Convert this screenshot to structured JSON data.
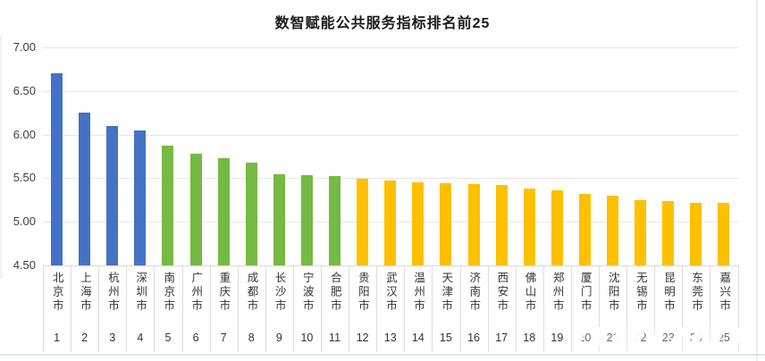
{
  "title": "数智赋能公共服务指标排名前25",
  "chart_data": {
    "type": "bar",
    "title": "数智赋能公共服务指标排名前25",
    "categories": [
      "北京市",
      "上海市",
      "杭州市",
      "深圳市",
      "南京市",
      "广州市",
      "重庆市",
      "成都市",
      "长沙市",
      "宁波市",
      "合肥市",
      "贵阳市",
      "武汉市",
      "温州市",
      "天津市",
      "济南市",
      "西安市",
      "佛山市",
      "郑州市",
      "厦门市",
      "沈阳市",
      "无锡市",
      "昆明市",
      "东莞市",
      "嘉兴市"
    ],
    "ranks": [
      1,
      2,
      3,
      4,
      5,
      6,
      7,
      8,
      9,
      10,
      11,
      12,
      13,
      14,
      15,
      16,
      17,
      18,
      19,
      20,
      21,
      22,
      23,
      24,
      25
    ],
    "values": [
      6.7,
      6.25,
      6.1,
      6.05,
      5.87,
      5.78,
      5.73,
      5.68,
      5.55,
      5.53,
      5.52,
      5.49,
      5.47,
      5.45,
      5.44,
      5.43,
      5.42,
      5.38,
      5.36,
      5.32,
      5.3,
      5.25,
      5.24,
      5.22,
      5.22
    ],
    "bar_colors": [
      "#4472C4",
      "#4472C4",
      "#4472C4",
      "#4472C4",
      "#76B943",
      "#76B943",
      "#76B943",
      "#76B943",
      "#76B943",
      "#76B943",
      "#76B943",
      "#FFC000",
      "#FFC000",
      "#FFC000",
      "#FFC000",
      "#FFC000",
      "#FFC000",
      "#FFC000",
      "#FFC000",
      "#FFC000",
      "#FFC000",
      "#FFC000",
      "#FFC000",
      "#FFC000",
      "#FFC000"
    ],
    "color_groups": [
      {
        "color": "#4472C4",
        "ranks": "1-4"
      },
      {
        "color": "#76B943",
        "ranks": "5-11"
      },
      {
        "color": "#FFC000",
        "ranks": "12-25"
      }
    ],
    "xlabel": "",
    "ylabel": "",
    "ylim": [
      4.5,
      7.0
    ],
    "yticks": [
      "7.00",
      "6.50",
      "6.00",
      "5.50",
      "5.00",
      "4.50"
    ],
    "grid": true,
    "legend": "none"
  }
}
